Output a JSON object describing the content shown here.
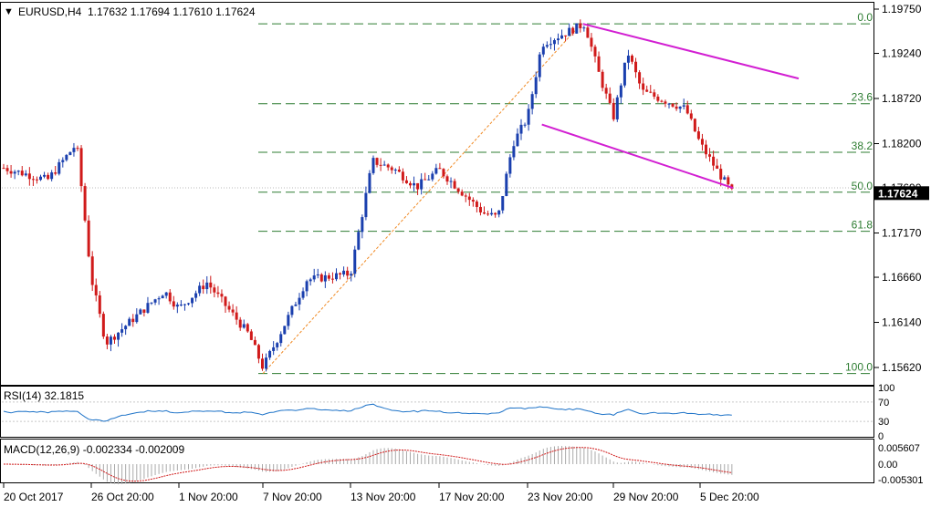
{
  "header": {
    "arrow": "▼",
    "symbol": "EURUSD,H4",
    "ohlc": "1.17632 1.17694 1.17610 1.17624"
  },
  "price_axis": {
    "ticks": [
      "1.19750",
      "1.19240",
      "1.18720",
      "1.18200",
      "1.17690",
      "1.17170",
      "1.16660",
      "1.16140",
      "1.15620"
    ],
    "current_price": "1.17624"
  },
  "fibonacci": {
    "levels": [
      {
        "label": "0.0",
        "price": 1.1958
      },
      {
        "label": "23.6",
        "price": 1.1866
      },
      {
        "label": "38.2",
        "price": 1.181
      },
      {
        "label": "50.0",
        "price": 1.1764
      },
      {
        "label": "61.8",
        "price": 1.1719
      },
      {
        "label": "100.0",
        "price": 1.1555
      }
    ]
  },
  "rsi_panel": {
    "label": "RSI(14) 32.1815",
    "ticks": [
      "100",
      "70",
      "30",
      "0"
    ]
  },
  "macd_panel": {
    "label": "MACD(12,26,9) -0.002334 -0.002009",
    "ticks": [
      "0.005607",
      "0.00",
      "-0.005301"
    ]
  },
  "time_axis": {
    "labels": [
      "20 Oct 2017",
      "26 Oct 20:00",
      "1 Nov 20:00",
      "7 Nov 20:00",
      "13 Nov 20:00",
      "17 Nov 20:00",
      "23 Nov 20:00",
      "29 Nov 20:00",
      "5 Dec 20:00"
    ]
  },
  "colors": {
    "bull": "#1a3fae",
    "bear": "#d01a1a",
    "fib_line": "#2e7d32",
    "channel": "#d21fd2",
    "rsi": "#1e73c8",
    "macd_hist": "#a9a9a9",
    "macd_signal": "#d01a1a",
    "fib_trend": "#f08a24"
  },
  "chart_data": {
    "type": "candlestick",
    "title": "EURUSD,H4",
    "y_range": [
      1.1535,
      1.1985
    ],
    "anchors": [
      {
        "date": "20 Oct 2017",
        "close": 1.1792
      },
      {
        "date": "23 Oct 2017",
        "close": 1.1778
      },
      {
        "date": "25 Oct 2017",
        "close": 1.182
      },
      {
        "date": "26 Oct 2017",
        "close": 1.1665
      },
      {
        "date": "27 Oct 2017",
        "close": 1.159
      },
      {
        "date": "31 Oct 2017",
        "close": 1.165
      },
      {
        "date": "1 Nov 2017",
        "close": 1.163
      },
      {
        "date": "3 Nov 2017",
        "close": 1.166
      },
      {
        "date": "6 Nov 2017",
        "close": 1.16
      },
      {
        "date": "7 Nov 2017",
        "close": 1.1562
      },
      {
        "date": "8 Nov 2017",
        "close": 1.1595
      },
      {
        "date": "10 Nov 2017",
        "close": 1.1663
      },
      {
        "date": "13 Nov 2017",
        "close": 1.167
      },
      {
        "date": "14 Nov 2017",
        "close": 1.18
      },
      {
        "date": "15 Nov 2017",
        "close": 1.179
      },
      {
        "date": "16 Nov 2017",
        "close": 1.177
      },
      {
        "date": "17 Nov 2017",
        "close": 1.179
      },
      {
        "date": "20 Nov 2017",
        "close": 1.174
      },
      {
        "date": "21 Nov 2017",
        "close": 1.1735
      },
      {
        "date": "22 Nov 2017",
        "close": 1.182
      },
      {
        "date": "23 Nov 2017",
        "close": 1.185
      },
      {
        "date": "24 Nov 2017",
        "close": 1.1935
      },
      {
        "date": "27 Nov 2017",
        "close": 1.1958
      },
      {
        "date": "28 Nov 2017",
        "close": 1.19
      },
      {
        "date": "29 Nov 2017",
        "close": 1.185
      },
      {
        "date": "30 Nov 2017",
        "close": 1.1925
      },
      {
        "date": "1 Dec 2017",
        "close": 1.188
      },
      {
        "date": "4 Dec 2017",
        "close": 1.186
      },
      {
        "date": "5 Dec 2017",
        "close": 1.182
      },
      {
        "date": "6 Dec 2017",
        "close": 1.179
      },
      {
        "date": "7 Dec 2017",
        "close": 1.1762
      }
    ],
    "fib_swing": {
      "low": 1.1555,
      "high": 1.1958
    },
    "channel": {
      "upper": [
        {
          "date": "27 Nov 2017",
          "price": 1.1958
        },
        {
          "date": "11 Dec 2017",
          "price": 1.1895
        }
      ],
      "lower": [
        {
          "date": "24 Nov 2017",
          "price": 1.1842
        },
        {
          "date": "7 Dec 2017",
          "price": 1.1769
        }
      ]
    }
  }
}
